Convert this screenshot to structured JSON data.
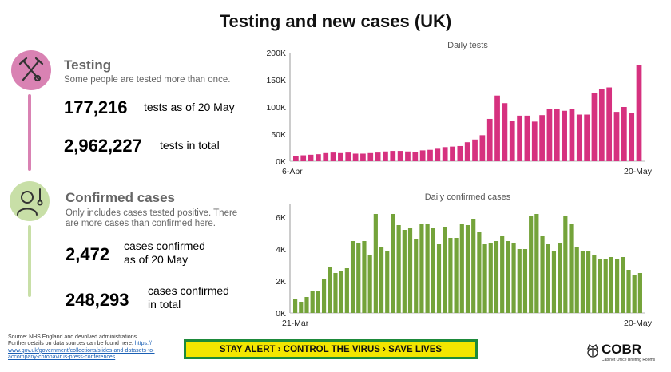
{
  "title": "Testing and new cases (UK)",
  "testing": {
    "heading": "Testing",
    "subtitle": "Some people are tested more than once.",
    "stat1_value": "177,216",
    "stat1_label": "tests as of 20 May",
    "stat2_value": "2,962,227",
    "stat2_label": "tests in total",
    "accent": "#d6317f",
    "icon": "test-tube-icon"
  },
  "cases": {
    "heading": "Confirmed cases",
    "subtitle_line1": "Only includes cases tested positive. There",
    "subtitle_line2": "are more cases than confirmed here.",
    "stat1_value": "2,472",
    "stat1_label_line1": "cases confirmed",
    "stat1_label_line2": "as of 20 May",
    "stat2_value": "248,293",
    "stat2_label_line1": "cases confirmed",
    "stat2_label_line2": "in total",
    "accent": "#74a33a",
    "icon": "person-thermometer-icon"
  },
  "source": {
    "line1": "Source: NHS England and devolved administrations.",
    "line2": "Further details on data sources can be found here:",
    "link1": "https://",
    "link2": "www.gov.uk/government/collections/slides-and-datasets-to-",
    "link3": "accompany-coronavirus-press-conferences"
  },
  "banner": "STAY ALERT › CONTROL THE VIRUS › SAVE LIVES",
  "logo": {
    "text": "COBR",
    "subtext": "Cabinet Office Briefing Rooms",
    "icon": "crown-crest-icon"
  },
  "chart_data": [
    {
      "type": "bar",
      "title": "Daily tests",
      "color": "#d6317f",
      "x_start_label": "6-Apr",
      "x_end_label": "20-May",
      "ylim": [
        0,
        200000
      ],
      "yticks": [
        "0K",
        "50K",
        "100K",
        "150K",
        "200K"
      ],
      "values": [
        10000,
        11000,
        12000,
        13000,
        15000,
        16000,
        15000,
        16000,
        14000,
        14000,
        15000,
        16000,
        18000,
        19000,
        19000,
        18000,
        17000,
        20000,
        21000,
        23000,
        26000,
        27000,
        28000,
        35000,
        40000,
        48000,
        78000,
        121000,
        107000,
        75000,
        84000,
        84000,
        73000,
        85000,
        97000,
        97000,
        93000,
        97000,
        86000,
        86000,
        126000,
        133000,
        136000,
        91000,
        100000,
        89000,
        177000
      ]
    },
    {
      "type": "bar",
      "title": "Daily confirmed cases",
      "color": "#74a33a",
      "x_start_label": "21-Mar",
      "x_end_label": "20-May",
      "ylim": [
        0,
        6800
      ],
      "yticks": [
        "0K",
        "2K",
        "4K",
        "6K"
      ],
      "values": [
        900,
        700,
        1000,
        1400,
        1400,
        2100,
        2900,
        2500,
        2600,
        2800,
        4500,
        4400,
        4500,
        3600,
        6200,
        4100,
        3900,
        6200,
        5500,
        5200,
        5300,
        4600,
        5600,
        5600,
        5300,
        4300,
        5400,
        4700,
        4700,
        5600,
        5500,
        5900,
        5100,
        4300,
        4400,
        4500,
        4800,
        4500,
        4400,
        4000,
        4000,
        6100,
        6200,
        4800,
        4300,
        3900,
        4400,
        6100,
        5600,
        4100,
        3900,
        3900,
        3600,
        3400,
        3400,
        3500,
        3400,
        3500,
        2700,
        2400,
        2500
      ]
    }
  ]
}
